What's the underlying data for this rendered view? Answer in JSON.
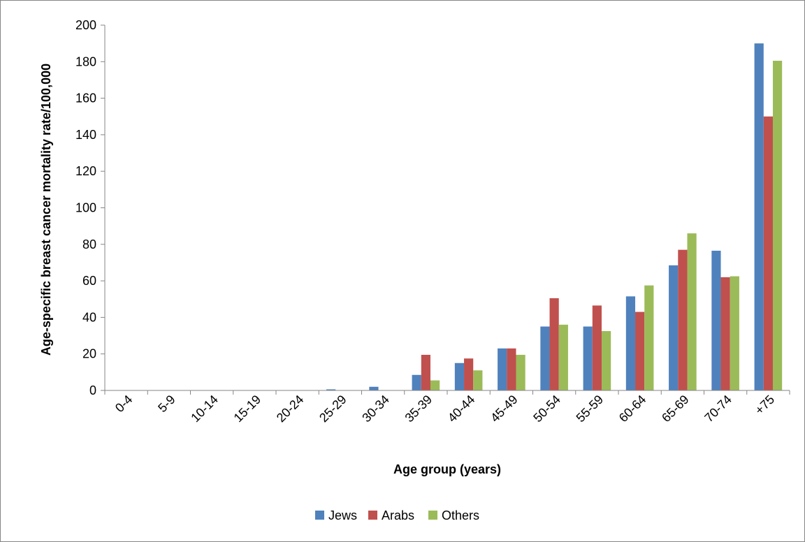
{
  "chart_data": {
    "type": "bar",
    "title": "",
    "xlabel": "Age group (years)",
    "ylabel": "Age-specific breast cancer mortality rate/100,000",
    "ylim": [
      0,
      200
    ],
    "yticks": [
      0,
      20,
      40,
      60,
      80,
      100,
      120,
      140,
      160,
      180,
      200
    ],
    "grid": false,
    "legend_position": "bottom",
    "categories": [
      "0-4",
      "5-9",
      "10-14",
      "15-19",
      "20-24",
      "25-29",
      "30-34",
      "35-39",
      "40-44",
      "45-49",
      "50-54",
      "55-59",
      "60-64",
      "65-69",
      "70-74",
      "+75"
    ],
    "series": [
      {
        "name": "Jews",
        "color": "#4f81bd",
        "values": [
          0,
          0,
          0,
          0,
          0,
          0.6,
          2,
          8.5,
          15,
          23,
          35,
          35,
          51.5,
          68.5,
          76.5,
          190
        ]
      },
      {
        "name": "Arabs",
        "color": "#c0504d",
        "values": [
          0,
          0,
          0,
          0,
          0,
          0,
          0,
          19.5,
          17.5,
          23,
          50.5,
          46.5,
          43,
          77,
          62,
          150
        ]
      },
      {
        "name": "Others",
        "color": "#9bbb59",
        "values": [
          0,
          0,
          0,
          0,
          0,
          0,
          0,
          5.5,
          11,
          19.5,
          36,
          32.5,
          57.5,
          86,
          62.5,
          180.5
        ]
      }
    ]
  }
}
